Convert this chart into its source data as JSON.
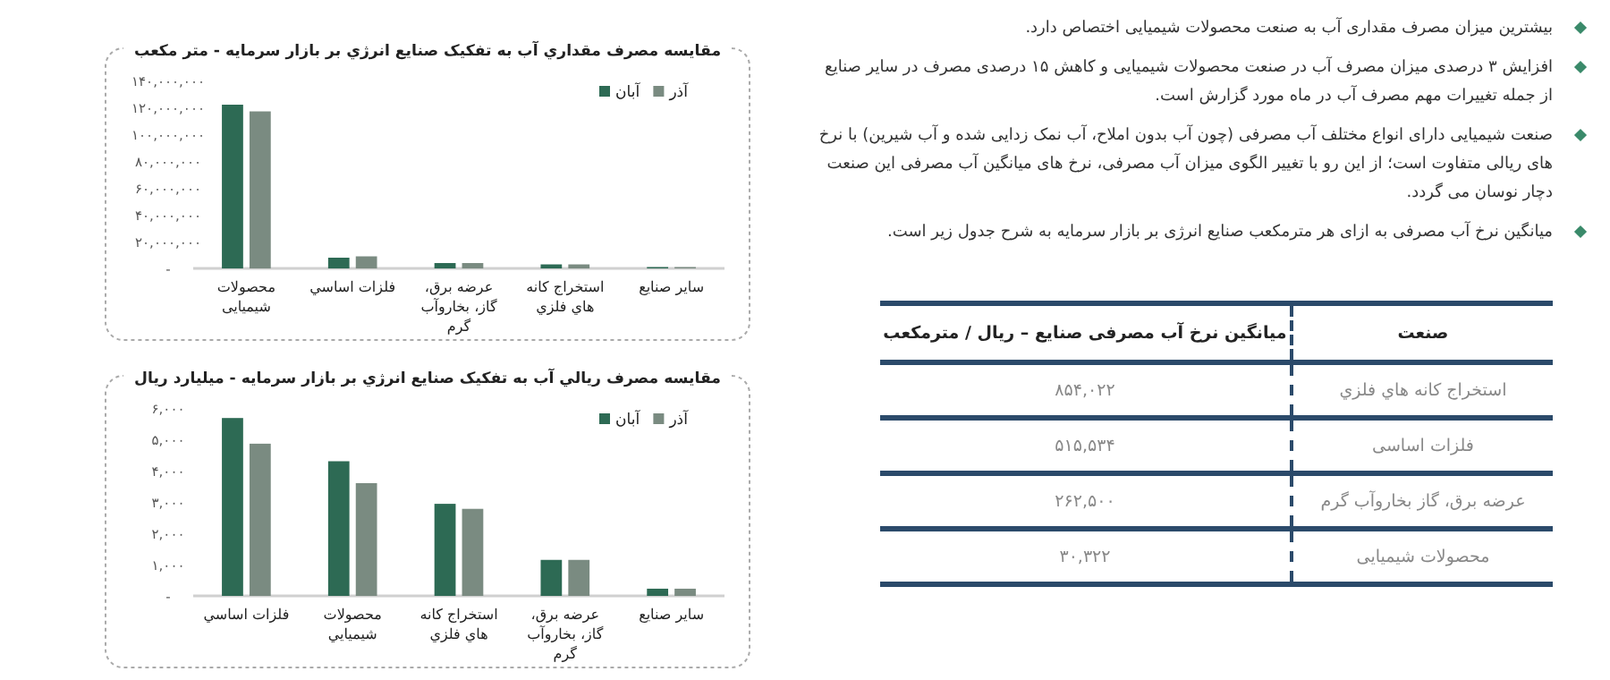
{
  "chart_data": [
    {
      "type": "bar",
      "title": "مقایسه مصرف مقداري آب به تفکیک صنایع انرژي بر بازار سرمایه - متر مکعب",
      "categories": [
        "محصولات شیمیایی",
        "فلزات اساسي",
        "عرضه برق، گاز، بخاروآب گرم",
        "استخراج کانه هاي فلزي",
        "سایر صنایع"
      ],
      "series": [
        {
          "name": "آبان",
          "color": "#2d6a54",
          "values": [
            122000000,
            8000000,
            4000000,
            3000000,
            1000000
          ]
        },
        {
          "name": "آذر",
          "color": "#7a8b81",
          "values": [
            117000000,
            9000000,
            4000000,
            3000000,
            1000000
          ]
        }
      ],
      "ylim": [
        0,
        140000000
      ],
      "yticks": [
        {
          "value": 0,
          "label": "-"
        },
        {
          "value": 20000000,
          "label": "۲۰,۰۰۰,۰۰۰"
        },
        {
          "value": 40000000,
          "label": "۴۰,۰۰۰,۰۰۰"
        },
        {
          "value": 60000000,
          "label": "۶۰,۰۰۰,۰۰۰"
        },
        {
          "value": 80000000,
          "label": "۸۰,۰۰۰,۰۰۰"
        },
        {
          "value": 100000000,
          "label": "۱۰۰,۰۰۰,۰۰۰"
        },
        {
          "value": 120000000,
          "label": "۱۲۰,۰۰۰,۰۰۰"
        },
        {
          "value": 140000000,
          "label": "۱۴۰,۰۰۰,۰۰۰"
        }
      ],
      "legend": "top right"
    },
    {
      "type": "bar",
      "title": "مقایسه مصرف ریالي آب به تفکیک صنایع انرژي بر بازار سرمایه - میلیارد ریال",
      "categories": [
        "فلزات اساسي",
        "محصولات شیمیایي",
        "استخراج کانه هاي فلزي",
        "عرضه برق، گاز، بخاروآب گرم",
        "سایر صنایع"
      ],
      "series": [
        {
          "name": "آبان",
          "color": "#2d6a54",
          "values": [
            5680,
            4300,
            2940,
            1150,
            230
          ]
        },
        {
          "name": "آذر",
          "color": "#7a8b81",
          "values": [
            4860,
            3600,
            2780,
            1150,
            230
          ]
        }
      ],
      "ylim": [
        0,
        6000
      ],
      "yticks": [
        {
          "value": 0,
          "label": "-"
        },
        {
          "value": 1000,
          "label": "۱,۰۰۰"
        },
        {
          "value": 2000,
          "label": "۲,۰۰۰"
        },
        {
          "value": 3000,
          "label": "۳,۰۰۰"
        },
        {
          "value": 4000,
          "label": "۴,۰۰۰"
        },
        {
          "value": 5000,
          "label": "۵,۰۰۰"
        },
        {
          "value": 6000,
          "label": "۶,۰۰۰"
        }
      ],
      "legend": "top right"
    },
    {
      "type": "other",
      "annotations": [
        "بیشترین میزان مصرف مقداری آب به صنعت محصولات شیمیایی اختصاص دارد.",
        "افزایش ۳ درصدی میزان مصرف آب در صنعت محصولات شیمیایی و کاهش ۱۵ درصدی مصرف در سایر صنایع از جمله تغییرات مهم مصرف آب در ماه مورد گزارش است.",
        "صنعت شیمیایی دارای انواع مختلف آب مصرفی (چون آب بدون املاح، آب نمک زدایی شده و آب شیرین) با نرخ های ریالی متفاوت است؛ از این رو با تغییر الگوی میزان آب مصرفی، نرخ های میانگین آب مصرفی این صنعت دچار نوسان می گردد.",
        "میانگین نرخ آب مصرفی به ازای هر مترمکعب صنایع انرژی بر بازار سرمایه به شرح جدول زیر است."
      ]
    },
    {
      "type": "other",
      "annotations": [
        "صنعت",
        "میانگین نرخ آب مصرفی صنایع – ریال / مترمکعب",
        "استخراج کانه هاي فلزي",
        "۸۵۴,۰۲۲",
        "فلزات اساسی",
        "۵۱۵,۵۳۴",
        "عرضه برق، گاز بخاروآب گرم",
        "۲۶۲,۵۰۰",
        "محصولات شیمیایی",
        "۳۰,۳۲۲"
      ]
    }
  ]
}
